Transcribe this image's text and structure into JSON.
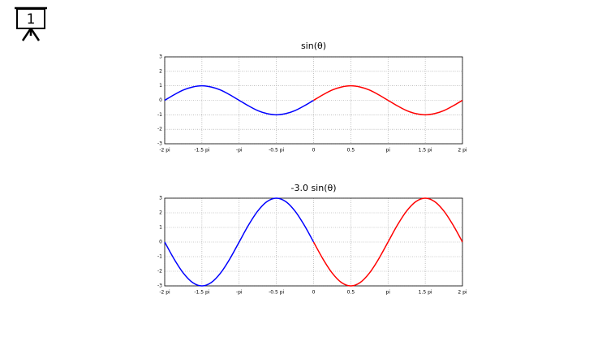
{
  "slide_number": "1",
  "chart_data": [
    {
      "type": "line",
      "title": "sin(θ)",
      "x": [
        -2,
        -1.875,
        -1.75,
        -1.625,
        -1.5,
        -1.375,
        -1.25,
        -1.125,
        -1,
        -0.875,
        -0.75,
        -0.625,
        -0.5,
        -0.375,
        -0.25,
        -0.125,
        0,
        0.125,
        0.25,
        0.375,
        0.5,
        0.625,
        0.75,
        0.875,
        1,
        1.125,
        1.25,
        1.375,
        1.5,
        1.625,
        1.75,
        1.875,
        2
      ],
      "series": [
        {
          "name": null,
          "color": "#0000ff",
          "values": [
            0,
            0.38,
            0.71,
            0.92,
            1,
            0.92,
            0.71,
            0.38,
            0,
            -0.38,
            -0.71,
            -0.92,
            -1,
            -0.92,
            -0.71,
            -0.38,
            0,
            null,
            null,
            null,
            null,
            null,
            null,
            null,
            null,
            null,
            null,
            null,
            null,
            null,
            null,
            null,
            null
          ]
        },
        {
          "name": null,
          "color": "#ff0000",
          "values": [
            null,
            null,
            null,
            null,
            null,
            null,
            null,
            null,
            null,
            null,
            null,
            null,
            null,
            null,
            null,
            null,
            0,
            0.38,
            0.71,
            0.92,
            1,
            0.92,
            0.71,
            0.38,
            0,
            -0.38,
            -0.71,
            -0.92,
            -1,
            -0.92,
            -0.71,
            -0.38,
            0
          ]
        }
      ],
      "xlim": [
        -2,
        2
      ],
      "xticks": [
        {
          "value": -2,
          "label": "-2 pi"
        },
        {
          "value": -1.5,
          "label": "-1.5 pi"
        },
        {
          "value": -1,
          "label": "-pi"
        },
        {
          "value": -0.5,
          "label": "-0.5 pi"
        },
        0,
        0.5,
        {
          "value": 1,
          "label": "pi"
        },
        {
          "value": 1.5,
          "label": "1.5 pi"
        },
        {
          "value": 2,
          "label": "2 pi"
        }
      ],
      "ylim": [
        -3,
        3
      ],
      "yticks": [
        -3,
        -2,
        -1,
        0,
        1,
        2,
        3
      ],
      "grid": true
    },
    {
      "type": "line",
      "title": "-3.0 sin(θ)",
      "x": [
        -2,
        -1.875,
        -1.75,
        -1.625,
        -1.5,
        -1.375,
        -1.25,
        -1.125,
        -1,
        -0.875,
        -0.75,
        -0.625,
        -0.5,
        -0.375,
        -0.25,
        -0.125,
        0,
        0.125,
        0.25,
        0.375,
        0.5,
        0.625,
        0.75,
        0.875,
        1,
        1.125,
        1.25,
        1.375,
        1.5,
        1.625,
        1.75,
        1.875,
        2
      ],
      "series": [
        {
          "name": null,
          "color": "#0000ff",
          "values": [
            0,
            -1.15,
            -2.12,
            -2.77,
            -3,
            -2.77,
            -2.12,
            -1.15,
            0,
            1.15,
            2.12,
            2.77,
            3,
            2.77,
            2.12,
            1.15,
            0,
            null,
            null,
            null,
            null,
            null,
            null,
            null,
            null,
            null,
            null,
            null,
            null,
            null,
            null,
            null,
            null
          ]
        },
        {
          "name": null,
          "color": "#ff0000",
          "values": [
            null,
            null,
            null,
            null,
            null,
            null,
            null,
            null,
            null,
            null,
            null,
            null,
            null,
            null,
            null,
            null,
            0,
            -1.15,
            -2.12,
            -2.77,
            -3,
            -2.77,
            -2.12,
            -1.15,
            0,
            1.15,
            2.12,
            2.77,
            3,
            2.77,
            2.12,
            1.15,
            0
          ]
        }
      ],
      "xlim": [
        -2,
        2
      ],
      "xticks": [
        {
          "value": -2,
          "label": "-2 pi"
        },
        {
          "value": -1.5,
          "label": "-1.5 pi"
        },
        {
          "value": -1,
          "label": "-pi"
        },
        {
          "value": -0.5,
          "label": "-0.5 pi"
        },
        0,
        0.5,
        {
          "value": 1,
          "label": "pi"
        },
        {
          "value": 1.5,
          "label": "1.5 pi"
        },
        {
          "value": 2,
          "label": "2 pi"
        }
      ],
      "ylim": [
        -3,
        3
      ],
      "yticks": [
        -3,
        -2,
        -1,
        0,
        1,
        2,
        3
      ],
      "grid": true
    }
  ]
}
